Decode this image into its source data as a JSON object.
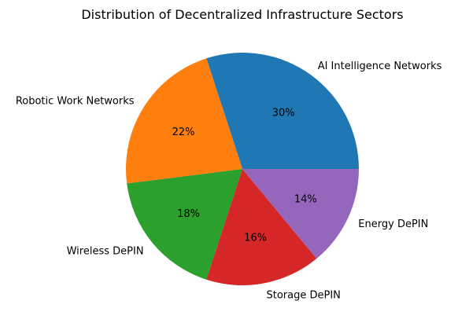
{
  "chart_data": {
    "type": "pie",
    "title": "Distribution of Decentralized Infrastructure Sectors",
    "slices": [
      {
        "label": "AI Intelligence Networks",
        "value": 30,
        "pct_label": "30%",
        "color": "#1f77b4"
      },
      {
        "label": "Robotic Work Networks",
        "value": 22,
        "pct_label": "22%",
        "color": "#ff7f0e"
      },
      {
        "label": "Wireless DePIN",
        "value": 18,
        "pct_label": "18%",
        "color": "#2ca02c"
      },
      {
        "label": "Storage DePIN",
        "value": 16,
        "pct_label": "16%",
        "color": "#d62728"
      },
      {
        "label": "Energy DePIN",
        "value": 14,
        "pct_label": "14%",
        "color": "#9467bd"
      }
    ],
    "start_angle_deg": 0,
    "direction": "counterclockwise"
  }
}
